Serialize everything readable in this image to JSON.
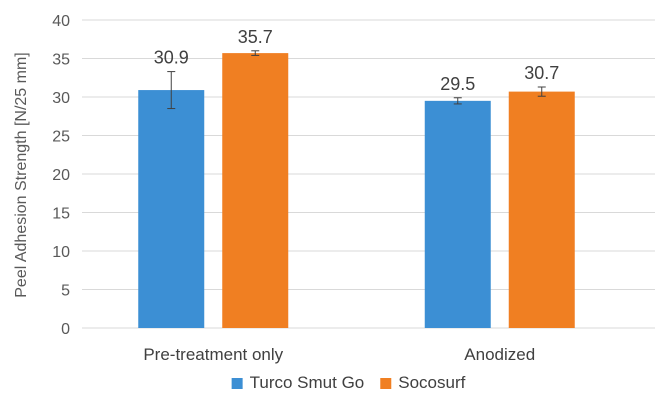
{
  "chart_data": {
    "type": "bar",
    "title": "",
    "xlabel": "",
    "ylabel": "Peel Adhesion Strength [N/25 mm]",
    "ylim": [
      0,
      40
    ],
    "yticks": [
      0,
      5,
      10,
      15,
      20,
      25,
      30,
      35,
      40
    ],
    "categories": [
      "Pre-treatment only",
      "Anodized"
    ],
    "series": [
      {
        "name": "Turco Smut Go",
        "color": "#3c8fd4",
        "values": [
          30.9,
          29.5
        ],
        "data_labels": [
          "30.9",
          "29.5"
        ],
        "error": [
          2.4,
          0.4
        ]
      },
      {
        "name": "Socosurf",
        "color": "#f07f22",
        "values": [
          35.7,
          30.7
        ],
        "data_labels": [
          "35.7",
          "30.7"
        ],
        "error": [
          0.3,
          0.6
        ]
      }
    ],
    "grid": true,
    "legend_position": "bottom"
  }
}
